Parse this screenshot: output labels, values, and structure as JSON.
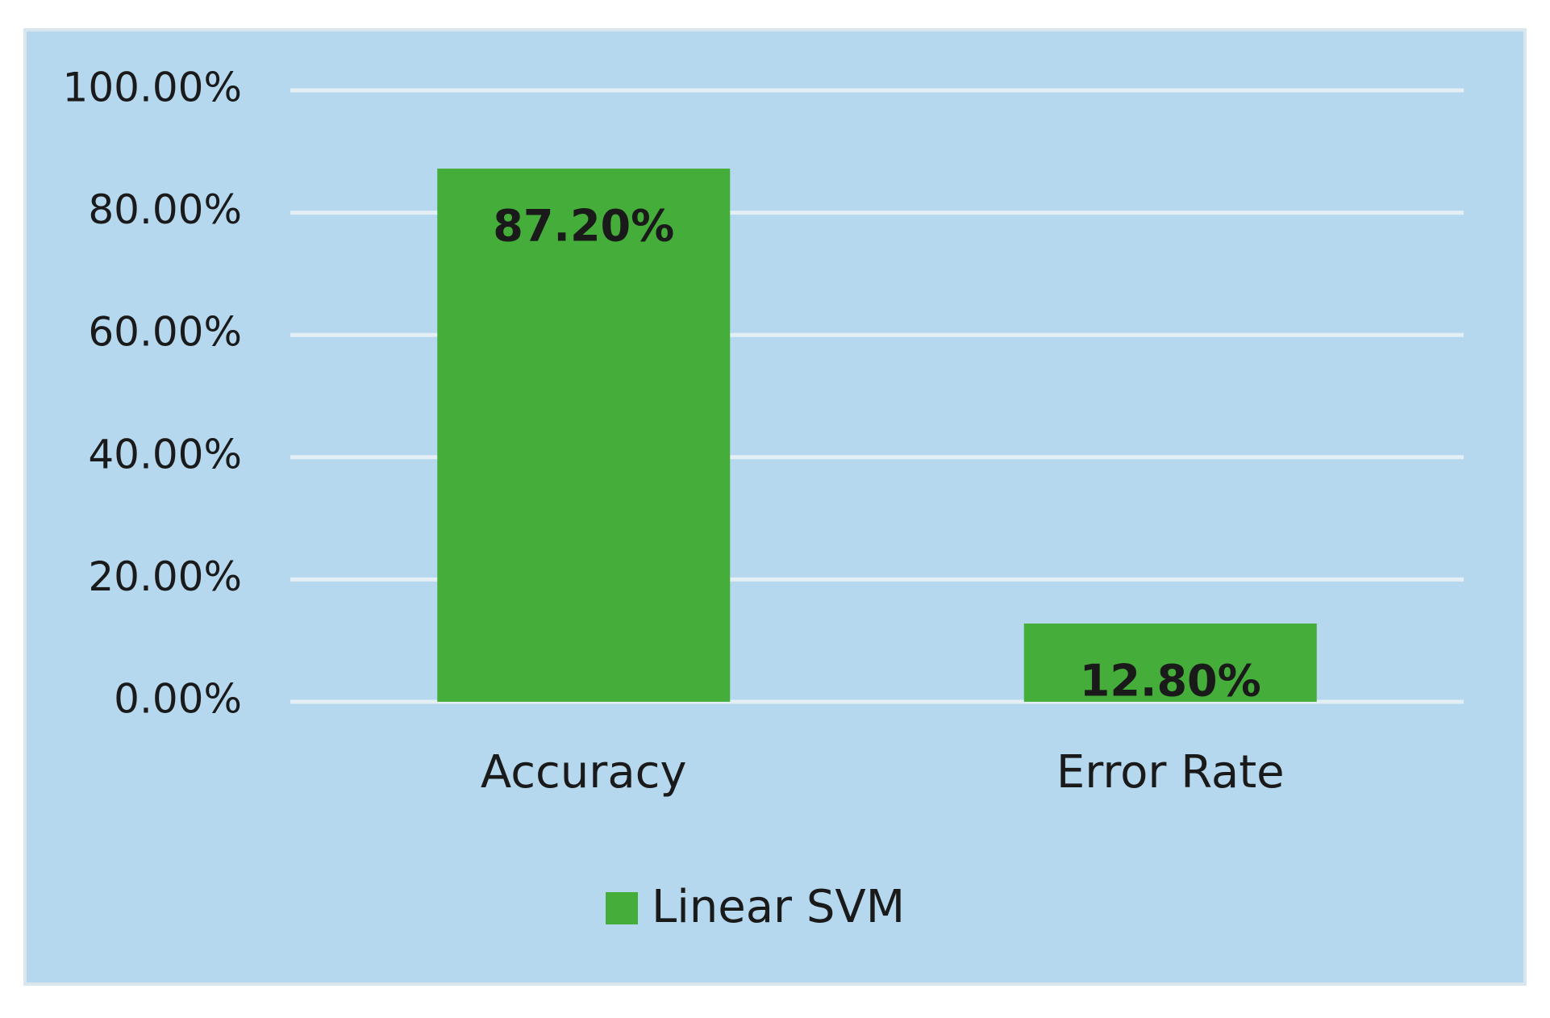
{
  "chart_data": {
    "type": "bar",
    "categories": [
      "Accuracy",
      "Error Rate"
    ],
    "series": [
      {
        "name": "Linear SVM",
        "color": "#45ad3a",
        "values": [
          87.2,
          12.8
        ],
        "value_labels": [
          "87.20%",
          "12.80%"
        ]
      }
    ],
    "ylim": [
      0,
      100
    ],
    "yticks": [
      {
        "value": 0,
        "label": "0.00%"
      },
      {
        "value": 20,
        "label": "20.00%"
      },
      {
        "value": 40,
        "label": "40.00%"
      },
      {
        "value": 60,
        "label": "60.00%"
      },
      {
        "value": 80,
        "label": "80.00%"
      },
      {
        "value": 100,
        "label": "100.00%"
      }
    ],
    "grid": true,
    "legend": "bottom"
  }
}
